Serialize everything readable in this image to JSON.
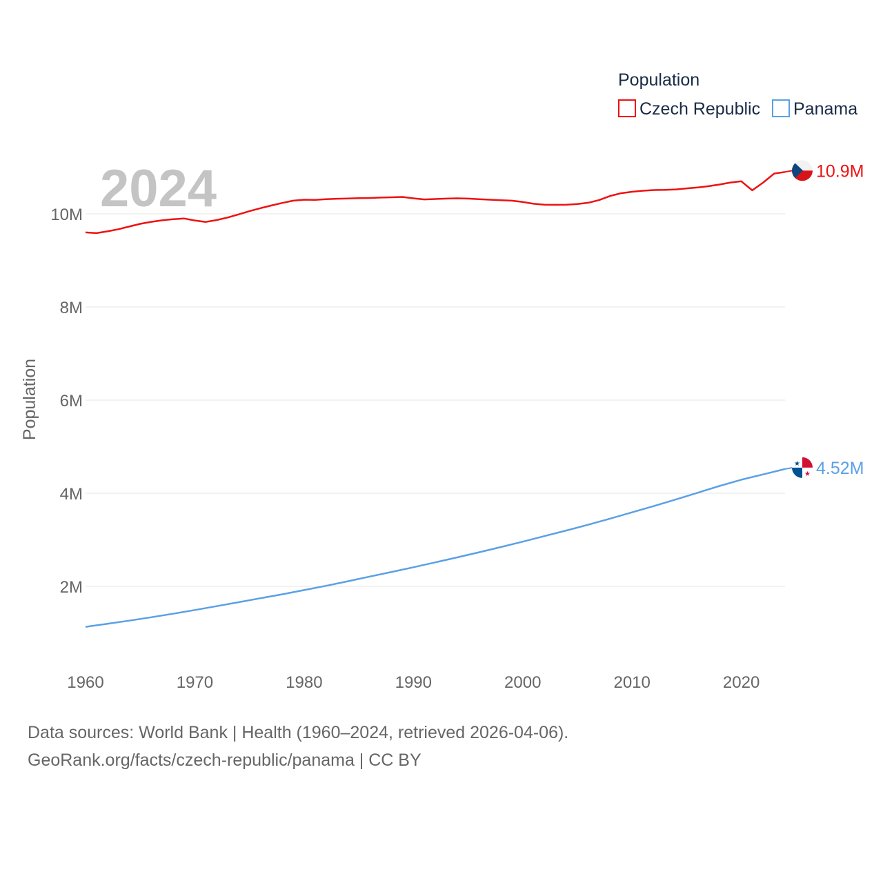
{
  "chart_data": {
    "type": "line",
    "title": "",
    "xlabel": "",
    "ylabel": "Population",
    "year_label": "2024",
    "xlim": [
      1960,
      2024
    ],
    "ylim": [
      200000,
      11500000
    ],
    "x_ticks": [
      1960,
      1970,
      1980,
      1990,
      2000,
      2010,
      2020
    ],
    "y_ticks": [
      {
        "value": 2000000,
        "label": "2M"
      },
      {
        "value": 4000000,
        "label": "4M"
      },
      {
        "value": 6000000,
        "label": "6M"
      },
      {
        "value": 8000000,
        "label": "8M"
      },
      {
        "value": 10000000,
        "label": "10M"
      }
    ],
    "legend": {
      "title": "Population",
      "position": "top-right"
    },
    "series": [
      {
        "name": "Czech Republic",
        "color": "#ee1111",
        "end_label": "10.9M",
        "flag_icon": "czech-flag-icon",
        "x": [
          1960,
          1961,
          1962,
          1963,
          1964,
          1965,
          1966,
          1967,
          1968,
          1969,
          1970,
          1971,
          1972,
          1973,
          1974,
          1975,
          1976,
          1977,
          1978,
          1979,
          1980,
          1981,
          1982,
          1983,
          1984,
          1985,
          1986,
          1987,
          1988,
          1989,
          1990,
          1991,
          1992,
          1993,
          1994,
          1995,
          1996,
          1997,
          1998,
          1999,
          2000,
          2001,
          2002,
          2003,
          2004,
          2005,
          2006,
          2007,
          2008,
          2009,
          2010,
          2011,
          2012,
          2013,
          2014,
          2015,
          2016,
          2017,
          2018,
          2019,
          2020,
          2021,
          2022,
          2023,
          2024
        ],
        "values": [
          9602000,
          9586000,
          9624000,
          9670000,
          9727000,
          9785000,
          9828000,
          9861000,
          9885000,
          9901000,
          9858000,
          9826000,
          9867000,
          9922000,
          9988000,
          10058000,
          10121000,
          10179000,
          10234000,
          10283000,
          10304000,
          10300000,
          10314000,
          10324000,
          10330000,
          10337000,
          10341000,
          10349000,
          10356000,
          10363000,
          10333000,
          10309000,
          10318000,
          10328000,
          10333000,
          10327000,
          10315000,
          10304000,
          10294000,
          10283000,
          10255000,
          10216000,
          10196000,
          10194000,
          10197000,
          10211000,
          10239000,
          10298000,
          10384000,
          10443000,
          10474000,
          10496000,
          10511000,
          10514000,
          10525000,
          10546000,
          10566000,
          10594000,
          10630000,
          10672000,
          10700000,
          10505000,
          10673000,
          10865000,
          10900000
        ]
      },
      {
        "name": "Panama",
        "color": "#5aa0e6",
        "end_label": "4.52M",
        "flag_icon": "panama-flag-icon",
        "x": [
          1960,
          1962,
          1964,
          1966,
          1968,
          1970,
          1972,
          1974,
          1976,
          1978,
          1980,
          1982,
          1984,
          1986,
          1988,
          1990,
          1992,
          1994,
          1996,
          1998,
          2000,
          2002,
          2004,
          2006,
          2008,
          2010,
          2012,
          2014,
          2016,
          2018,
          2020,
          2022,
          2024
        ],
        "values": [
          1130000,
          1196000,
          1264000,
          1336000,
          1412000,
          1492000,
          1575000,
          1660000,
          1745000,
          1830000,
          1920000,
          2012000,
          2110000,
          2210000,
          2310000,
          2410000,
          2515000,
          2622000,
          2732000,
          2845000,
          2960000,
          3080000,
          3200000,
          3325000,
          3455000,
          3590000,
          3725000,
          3865000,
          4010000,
          4155000,
          4290000,
          4405000,
          4520000
        ]
      }
    ]
  },
  "footer": {
    "line1": "Data sources: World Bank | Health (1960–2024, retrieved 2026-04-06).",
    "line2": "GeoRank.org/facts/czech-republic/panama | CC BY"
  }
}
